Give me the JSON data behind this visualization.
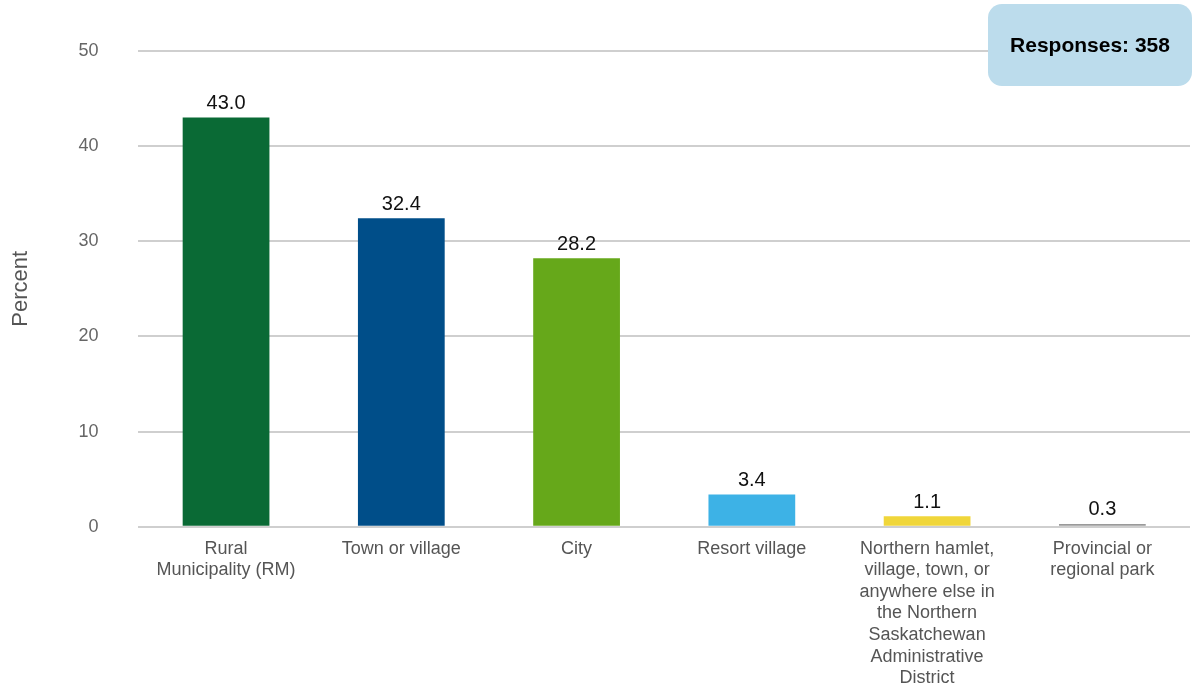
{
  "chart_data": {
    "type": "bar",
    "ylabel": "Percent",
    "categories": [
      "Rural Municipality (RM)",
      "Town or village",
      "City",
      "Resort village",
      "Northern hamlet, village, town, or anywhere else in the Northern Saskatchewan Administrative District",
      "Provincial or regional park"
    ],
    "values": [
      43.0,
      32.4,
      28.2,
      3.4,
      1.1,
      0.3
    ],
    "colors": [
      "#0a6a35",
      "#004e89",
      "#66a81a",
      "#3db2e6",
      "#f0d63a",
      "#9a9a9a"
    ],
    "value_labels": [
      "43.0",
      "32.4",
      "28.2",
      "3.4",
      "1.1",
      "0.3"
    ],
    "ylim": [
      0,
      50
    ],
    "yticks": [
      0,
      10,
      20,
      30,
      40,
      50
    ],
    "grid": "y",
    "legend": false,
    "annotations": [
      "Responses: 358"
    ]
  }
}
